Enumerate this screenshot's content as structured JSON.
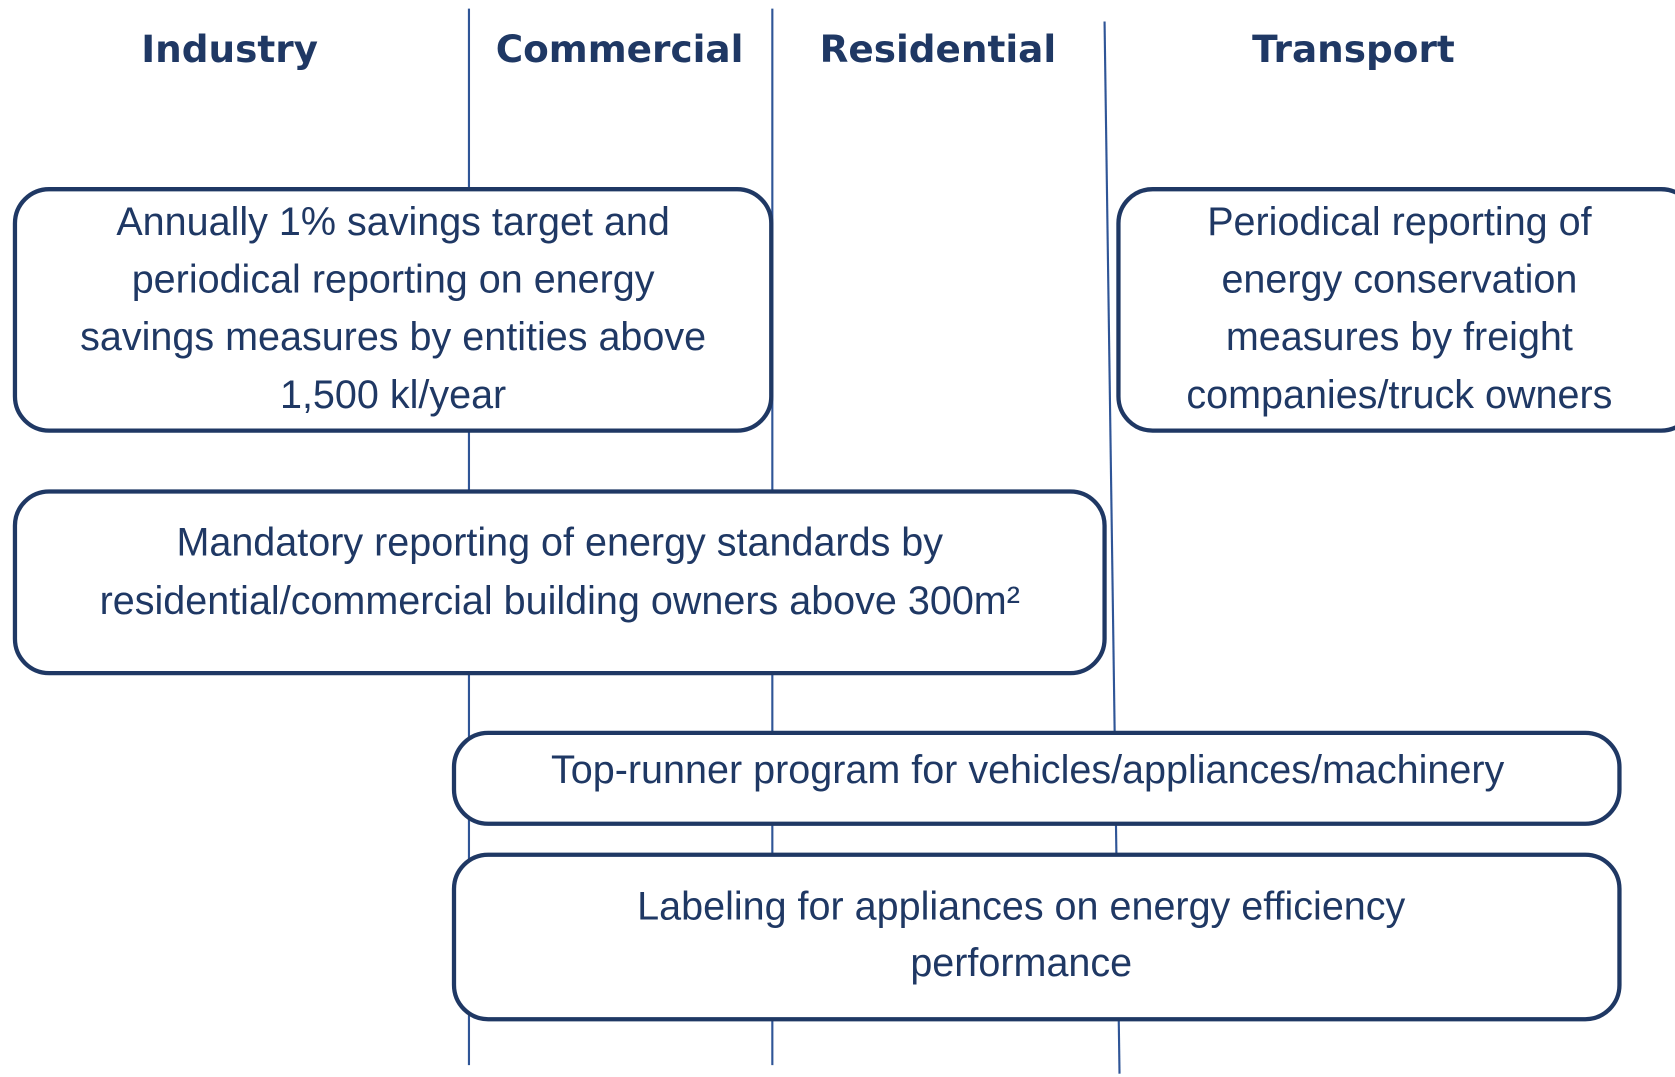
{
  "columns": [
    "Industry",
    "Commercial",
    "Residential",
    "Transport"
  ],
  "boxes": [
    {
      "lines": [
        "Annually 1% savings target and",
        "periodical reporting on energy",
        "savings measures by entities above",
        "1,500 kl/year"
      ]
    },
    {
      "lines": [
        "Periodical reporting of",
        "energy conservation",
        "measures by freight",
        "companies/truck owners"
      ]
    },
    {
      "lines": [
        "Mandatory reporting of energy standards by",
        "residential/commercial building owners above 300m²"
      ]
    },
    {
      "lines": [
        "Top-runner program for vehicles/appliances/machinery"
      ]
    },
    {
      "lines": [
        "Labeling for appliances on energy efficiency",
        "performance"
      ]
    }
  ]
}
